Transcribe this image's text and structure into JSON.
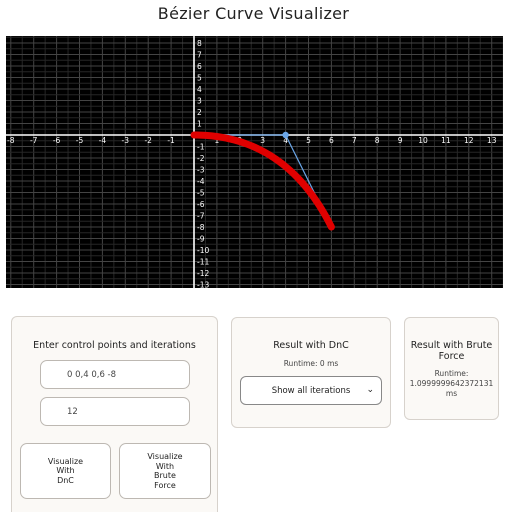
{
  "page": {
    "title": "Bézier Curve Visualizer"
  },
  "plot": {
    "x_ticks": [
      "-8",
      "-7",
      "-6",
      "-5",
      "-4",
      "-3",
      "-2",
      "-1",
      "1",
      "2",
      "3",
      "4",
      "5",
      "6",
      "7",
      "8",
      "9",
      "10",
      "11",
      "12",
      "13"
    ],
    "y_ticks": [
      "8",
      "7",
      "6",
      "5",
      "4",
      "3",
      "2",
      "1",
      "-1",
      "-2",
      "-3",
      "-4",
      "-5",
      "-6",
      "-7",
      "-8",
      "-9",
      "-10",
      "-11",
      "-12",
      "-13"
    ],
    "x_range": [
      -8,
      13
    ],
    "y_range": [
      -13,
      8
    ],
    "control_points": [
      [
        0,
        0
      ],
      [
        4,
        0
      ],
      [
        6,
        -8
      ]
    ],
    "colors": {
      "background": "#000000",
      "grid": "#3a3a3a",
      "curve": "#e00000",
      "control": "#6aa6e8"
    }
  },
  "input_panel": {
    "title": "Enter control points and iterations",
    "points_value": "0 0,4 0,6 -8",
    "iterations_value": "12",
    "dnc_button": "Visualize\nWith\nDnC",
    "bf_button": "Visualize\nWith\nBrute\nForce"
  },
  "dnc_panel": {
    "title": "Result with DnC",
    "runtime": "Runtime: 0 ms",
    "select_value": "Show all iterations",
    "chevron_icon": "chevron-down-icon"
  },
  "bf_panel": {
    "title": "Result with Brute Force",
    "runtime_label": "Runtime:",
    "runtime_value": "1.0999999642372131",
    "runtime_unit": "ms"
  }
}
